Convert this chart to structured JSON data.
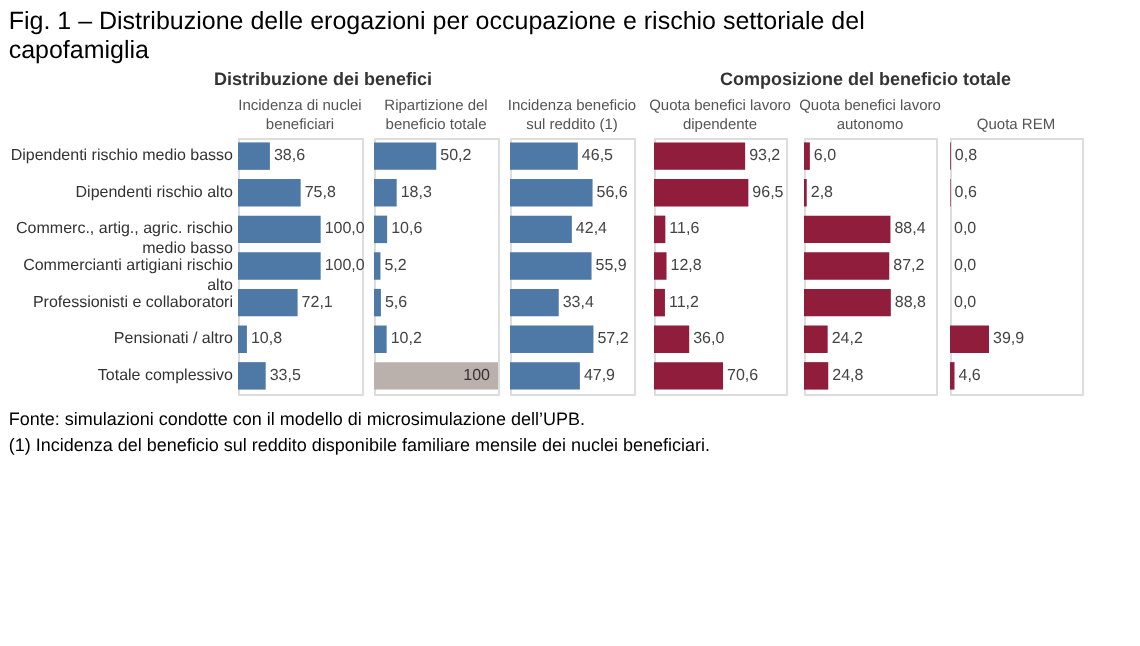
{
  "chart_data": [
    {
      "type": "other",
      "title": "Fig. 1 – Distribuzione delle erogazioni per occupazione e rischio settoriale del capofamiglia",
      "annotations": [
        "Fonte: simulazioni condotte con il modello di microsimulazione dell’UPB.",
        "(1) Incidenza del beneficio sul reddito disponibile familiare mensile dei nuclei beneficiari."
      ]
    },
    {
      "type": "bar",
      "orientation": "horizontal",
      "subtitle": "Distribuzione dei benefici",
      "title": "Incidenza di nuclei beneficiari",
      "categories": [
        "Dipendenti rischio medio basso",
        "Dipendenti rischio alto",
        "Commerc., artig., agric. rischio medio basso",
        "Commercianti artigiani rischio alto",
        "Professionisti e collaboratori",
        "Pensionati / altro",
        "Totale complessivo"
      ],
      "values": [
        38.6,
        75.8,
        100.0,
        100.0,
        72.1,
        10.8,
        33.5
      ],
      "value_labels": [
        "38,6",
        "75,8",
        "100,0",
        "100,0",
        "72,1",
        "10,8",
        "33,5"
      ],
      "color": "#4e79a7",
      "xlim": [
        0,
        150
      ],
      "tick_labels": "y"
    },
    {
      "type": "bar",
      "orientation": "horizontal",
      "title": "Ripartizione del beneficio totale",
      "values": [
        50.2,
        18.3,
        10.6,
        5.2,
        5.6,
        10.2,
        100
      ],
      "value_labels": [
        "50,2",
        "18,3",
        "10,6",
        "5,2",
        "5,6",
        "10,2",
        "100"
      ],
      "colors": [
        "#4e79a7",
        "#4e79a7",
        "#4e79a7",
        "#4e79a7",
        "#4e79a7",
        "#4e79a7",
        "#bab0ac"
      ],
      "xlim": [
        0,
        100
      ],
      "tick_labels": false
    },
    {
      "type": "bar",
      "orientation": "horizontal",
      "title": "Incidenza beneficio sul reddito (1)",
      "values": [
        46.5,
        56.6,
        42.4,
        55.9,
        33.4,
        57.2,
        47.9
      ],
      "value_labels": [
        "46,5",
        "56,6",
        "42,4",
        "55,9",
        "33,4",
        "57,2",
        "47,9"
      ],
      "color": "#4e79a7",
      "xlim": [
        0,
        85
      ],
      "tick_labels": false
    },
    {
      "type": "bar",
      "orientation": "horizontal",
      "subtitle": "Composizione del beneficio totale",
      "title": "Quota benefici lavoro dipendente",
      "values": [
        93.2,
        96.5,
        11.6,
        12.8,
        11.2,
        36.0,
        70.6
      ],
      "value_labels": [
        "93,2",
        "96,5",
        "11,6",
        "12,8",
        "11,2",
        "36,0",
        "70,6"
      ],
      "color": "#8f1d3b",
      "xlim": [
        0,
        135
      ],
      "tick_labels": false
    },
    {
      "type": "bar",
      "orientation": "horizontal",
      "title": "Quota benefici lavoro autonomo",
      "values": [
        6.0,
        2.8,
        88.4,
        87.2,
        88.8,
        24.2,
        24.8
      ],
      "value_labels": [
        "6,0",
        "2,8",
        "88,4",
        "87,2",
        "88,8",
        "24,2",
        "24,8"
      ],
      "color": "#8f1d3b",
      "xlim": [
        0,
        135
      ],
      "tick_labels": false
    },
    {
      "type": "bar",
      "orientation": "horizontal",
      "title": "Quota REM",
      "values": [
        0.8,
        0.6,
        0.0,
        0.0,
        0.0,
        39.9,
        4.6
      ],
      "value_labels": [
        "0,8",
        "0,6",
        "0,0",
        "0,0",
        "0,0",
        "39,9",
        "4,6"
      ],
      "color": "#8f1d3b",
      "xlim": [
        0,
        135
      ],
      "tick_labels": false
    }
  ]
}
